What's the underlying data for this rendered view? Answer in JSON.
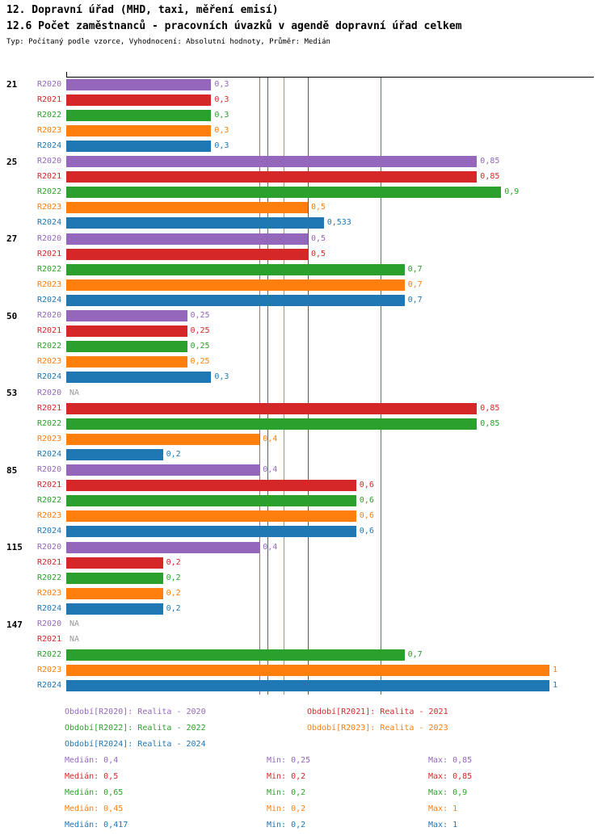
{
  "header": {
    "title1": "12. Dopravní úřad (MHD, taxi, měření emisí)",
    "title2": "12.6 Počet zaměstnanců - pracovních úvazků v agendě dopravní úřad celkem",
    "meta": "Typ: Počítaný podle vzorce, Vyhodnocení: Absolutní hodnoty, Průměr: Medián"
  },
  "colors": {
    "R2020": "#9467bd",
    "R2021": "#d62728",
    "R2022": "#2ca02c",
    "R2023": "#ff7f0e",
    "R2024": "#1f77b4",
    "na": "#999999",
    "axis": "#000000"
  },
  "chart_data": {
    "type": "bar",
    "orientation": "horizontal",
    "value_axis_range": [
      0,
      1.09
    ],
    "grid": false,
    "series_order": [
      "R2020",
      "R2021",
      "R2022",
      "R2023",
      "R2024"
    ],
    "medians": {
      "R2020": 0.4,
      "R2021": 0.5,
      "R2022": 0.65,
      "R2023": 0.45,
      "R2024": 0.417
    },
    "groups": [
      {
        "label": "21",
        "bars": [
          {
            "series": "R2020",
            "value": 0.3,
            "display": "0,3"
          },
          {
            "series": "R2021",
            "value": 0.3,
            "display": "0,3"
          },
          {
            "series": "R2022",
            "value": 0.3,
            "display": "0,3"
          },
          {
            "series": "R2023",
            "value": 0.3,
            "display": "0,3"
          },
          {
            "series": "R2024",
            "value": 0.3,
            "display": "0,3"
          }
        ]
      },
      {
        "label": "25",
        "bars": [
          {
            "series": "R2020",
            "value": 0.85,
            "display": "0,85"
          },
          {
            "series": "R2021",
            "value": 0.85,
            "display": "0,85"
          },
          {
            "series": "R2022",
            "value": 0.9,
            "display": "0,9"
          },
          {
            "series": "R2023",
            "value": 0.5,
            "display": "0,5"
          },
          {
            "series": "R2024",
            "value": 0.533,
            "display": "0,533"
          }
        ]
      },
      {
        "label": "27",
        "bars": [
          {
            "series": "R2020",
            "value": 0.5,
            "display": "0,5"
          },
          {
            "series": "R2021",
            "value": 0.5,
            "display": "0,5"
          },
          {
            "series": "R2022",
            "value": 0.7,
            "display": "0,7"
          },
          {
            "series": "R2023",
            "value": 0.7,
            "display": "0,7"
          },
          {
            "series": "R2024",
            "value": 0.7,
            "display": "0,7"
          }
        ]
      },
      {
        "label": "50",
        "bars": [
          {
            "series": "R2020",
            "value": 0.25,
            "display": "0,25"
          },
          {
            "series": "R2021",
            "value": 0.25,
            "display": "0,25"
          },
          {
            "series": "R2022",
            "value": 0.25,
            "display": "0,25"
          },
          {
            "series": "R2023",
            "value": 0.25,
            "display": "0,25"
          },
          {
            "series": "R2024",
            "value": 0.3,
            "display": "0,3"
          }
        ]
      },
      {
        "label": "53",
        "bars": [
          {
            "series": "R2020",
            "value": null,
            "display": "NA"
          },
          {
            "series": "R2021",
            "value": 0.85,
            "display": "0,85"
          },
          {
            "series": "R2022",
            "value": 0.85,
            "display": "0,85"
          },
          {
            "series": "R2023",
            "value": 0.4,
            "display": "0,4"
          },
          {
            "series": "R2024",
            "value": 0.2,
            "display": "0,2"
          }
        ]
      },
      {
        "label": "85",
        "bars": [
          {
            "series": "R2020",
            "value": 0.4,
            "display": "0,4"
          },
          {
            "series": "R2021",
            "value": 0.6,
            "display": "0,6"
          },
          {
            "series": "R2022",
            "value": 0.6,
            "display": "0,6"
          },
          {
            "series": "R2023",
            "value": 0.6,
            "display": "0,6"
          },
          {
            "series": "R2024",
            "value": 0.6,
            "display": "0,6"
          }
        ]
      },
      {
        "label": "115",
        "bars": [
          {
            "series": "R2020",
            "value": 0.4,
            "display": "0,4"
          },
          {
            "series": "R2021",
            "value": 0.2,
            "display": "0,2"
          },
          {
            "series": "R2022",
            "value": 0.2,
            "display": "0,2"
          },
          {
            "series": "R2023",
            "value": 0.2,
            "display": "0,2"
          },
          {
            "series": "R2024",
            "value": 0.2,
            "display": "0,2"
          }
        ]
      },
      {
        "label": "147",
        "bars": [
          {
            "series": "R2020",
            "value": null,
            "display": "NA"
          },
          {
            "series": "R2021",
            "value": null,
            "display": "NA"
          },
          {
            "series": "R2022",
            "value": 0.7,
            "display": "0,7"
          },
          {
            "series": "R2023",
            "value": 1,
            "display": "1"
          },
          {
            "series": "R2024",
            "value": 1,
            "display": "1"
          }
        ]
      }
    ]
  },
  "legend": {
    "items": [
      {
        "series": "R2020",
        "text": "Období[R2020]: Realita - 2020",
        "row": 0,
        "col": 0
      },
      {
        "series": "R2021",
        "text": "Období[R2021]: Realita - 2021",
        "row": 0,
        "col": 1
      },
      {
        "series": "R2022",
        "text": "Období[R2022]: Realita - 2022",
        "row": 1,
        "col": 0
      },
      {
        "series": "R2023",
        "text": "Období[R2023]: Realita - 2023",
        "row": 1,
        "col": 1
      },
      {
        "series": "R2024",
        "text": "Období[R2024]: Realita - 2024",
        "row": 2,
        "col": 0
      }
    ]
  },
  "stats": {
    "rows": [
      {
        "series": "R2020",
        "median": "Medián: 0,4",
        "min": "Min: 0,25",
        "max": "Max: 0,85"
      },
      {
        "series": "R2021",
        "median": "Medián: 0,5",
        "min": "Min: 0,2",
        "max": "Max: 0,85"
      },
      {
        "series": "R2022",
        "median": "Medián: 0,65",
        "min": "Min: 0,2",
        "max": "Max: 0,9"
      },
      {
        "series": "R2023",
        "median": "Medián: 0,45",
        "min": "Min: 0,2",
        "max": "Max: 1"
      },
      {
        "series": "R2024",
        "median": "Medián: 0,417",
        "min": "Min: 0,2",
        "max": "Max: 1"
      }
    ]
  }
}
